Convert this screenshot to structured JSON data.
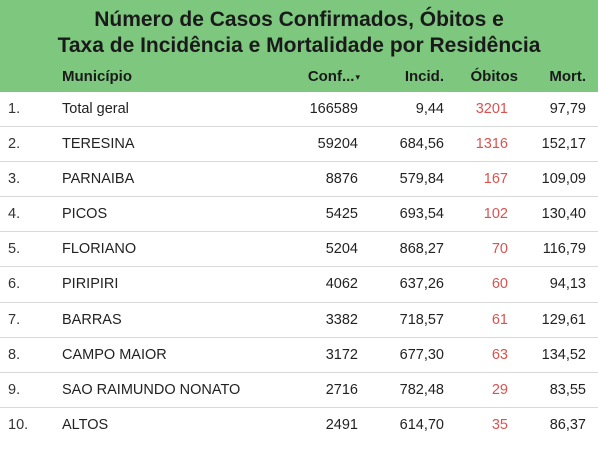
{
  "title": {
    "line1": "Número de Casos Confirmados, Óbitos e",
    "line2": "Taxa de Incidência e Mortalidade por Residência"
  },
  "columns": {
    "municipio": "Município",
    "confirmados": "Conf...",
    "incidencia": "Incid.",
    "obitos": "Óbitos",
    "mortalidade": "Mort.",
    "sort_icon": "▾"
  },
  "colors": {
    "header_bg": "#7dc77f",
    "obitos_text": "#d9534f"
  },
  "rows": [
    {
      "idx": "1.",
      "municipio": "Total geral",
      "confirmados": "166589",
      "incidencia": "9,44",
      "obitos": "3201",
      "mortalidade": "97,79"
    },
    {
      "idx": "2.",
      "municipio": "TERESINA",
      "confirmados": "59204",
      "incidencia": "684,56",
      "obitos": "1316",
      "mortalidade": "152,17"
    },
    {
      "idx": "3.",
      "municipio": "PARNAIBA",
      "confirmados": "8876",
      "incidencia": "579,84",
      "obitos": "167",
      "mortalidade": "109,09"
    },
    {
      "idx": "4.",
      "municipio": "PICOS",
      "confirmados": "5425",
      "incidencia": "693,54",
      "obitos": "102",
      "mortalidade": "130,40"
    },
    {
      "idx": "5.",
      "municipio": "FLORIANO",
      "confirmados": "5204",
      "incidencia": "868,27",
      "obitos": "70",
      "mortalidade": "116,79"
    },
    {
      "idx": "6.",
      "municipio": "PIRIPIRI",
      "confirmados": "4062",
      "incidencia": "637,26",
      "obitos": "60",
      "mortalidade": "94,13"
    },
    {
      "idx": "7.",
      "municipio": "BARRAS",
      "confirmados": "3382",
      "incidencia": "718,57",
      "obitos": "61",
      "mortalidade": "129,61"
    },
    {
      "idx": "8.",
      "municipio": "CAMPO MAIOR",
      "confirmados": "3172",
      "incidencia": "677,30",
      "obitos": "63",
      "mortalidade": "134,52"
    },
    {
      "idx": "9.",
      "municipio": "SAO RAIMUNDO NONATO",
      "confirmados": "2716",
      "incidencia": "782,48",
      "obitos": "29",
      "mortalidade": "83,55"
    },
    {
      "idx": "10.",
      "municipio": "ALTOS",
      "confirmados": "2491",
      "incidencia": "614,70",
      "obitos": "35",
      "mortalidade": "86,37"
    }
  ]
}
